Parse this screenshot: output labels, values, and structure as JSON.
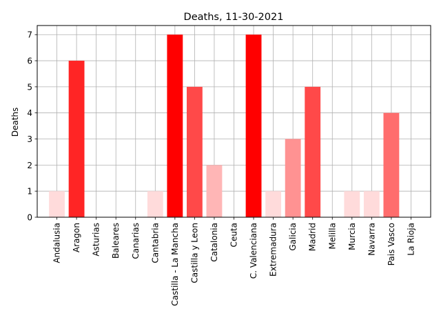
{
  "chart_data": {
    "type": "bar",
    "title": "Deaths, 11-30-2021",
    "xlabel": "",
    "ylabel": "Deaths",
    "ylim": [
      0,
      7.35
    ],
    "yticks": [
      0,
      1,
      2,
      3,
      4,
      5,
      6,
      7
    ],
    "grid": true,
    "categories": [
      "Andalusia",
      "Aragon",
      "Asturias",
      "Baleares",
      "Canarias",
      "Cantabria",
      "Castilla - La Mancha",
      "Castilla y Leon",
      "Catalonia",
      "Ceuta",
      "C. Valenciana",
      "Extremadura",
      "Galicia",
      "Madrid",
      "Melilla",
      "Murcia",
      "Navarra",
      "Pais Vasco",
      "La Rioja"
    ],
    "values": [
      1,
      6,
      0,
      0,
      0,
      1,
      7,
      5,
      2,
      0,
      7,
      1,
      3,
      5,
      0,
      1,
      1,
      4,
      0
    ],
    "colors": [
      "#ffdbdb",
      "#ff2525",
      "#ffffff",
      "#ffffff",
      "#ffffff",
      "#ffdbdb",
      "#ff0000",
      "#ff4949",
      "#ffb6b6",
      "#ffffff",
      "#ff0000",
      "#ffdbdb",
      "#ff9292",
      "#ff4949",
      "#ffffff",
      "#ffdbdb",
      "#ffdbdb",
      "#ff6d6d",
      "#ffffff"
    ]
  }
}
